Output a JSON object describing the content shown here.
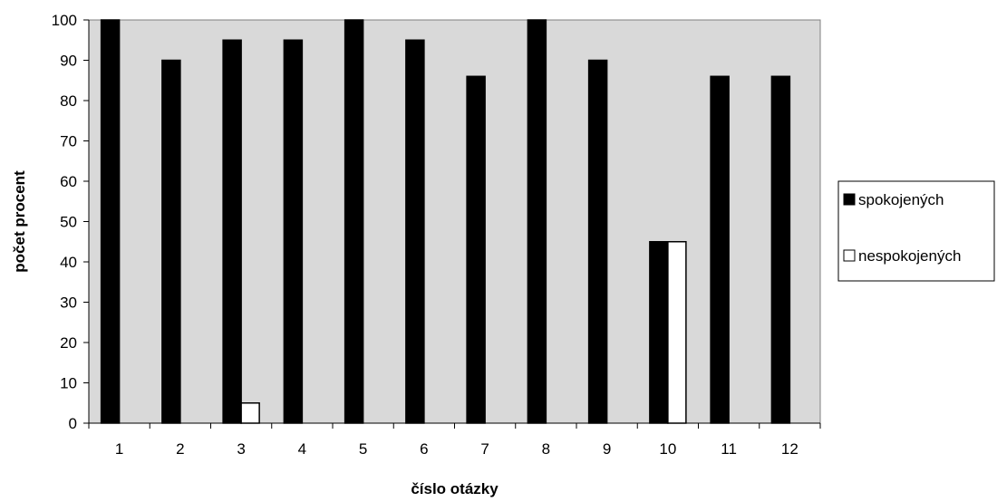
{
  "chart_data": {
    "type": "bar",
    "xlabel": "číslo otázky",
    "ylabel": "počet procent",
    "categories": [
      "1",
      "2",
      "3",
      "4",
      "5",
      "6",
      "7",
      "8",
      "9",
      "10",
      "11",
      "12"
    ],
    "series": [
      {
        "name": "spokojených",
        "color": "#000000",
        "values": [
          100,
          90,
          95,
          95,
          100,
          95,
          86,
          100,
          90,
          45,
          86,
          86
        ]
      },
      {
        "name": "nespokojených",
        "color": "#ffffff",
        "values": [
          0,
          0,
          5,
          0,
          0,
          0,
          0,
          0,
          0,
          45,
          0,
          0
        ]
      }
    ],
    "ylim": [
      0,
      100
    ],
    "yticks": [
      0,
      10,
      20,
      30,
      40,
      50,
      60,
      70,
      80,
      90,
      100
    ],
    "grid": false,
    "plot_background": "#d9d9d9",
    "legend_position": "right"
  }
}
